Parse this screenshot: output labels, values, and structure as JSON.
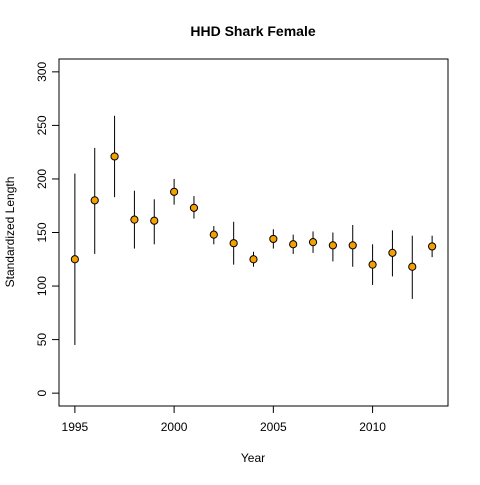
{
  "chart_data": {
    "type": "scatter",
    "title": "HHD Shark Female",
    "xlabel": "Year",
    "ylabel": "Standardized Length",
    "xlim": [
      1994.2,
      2013.8
    ],
    "ylim": [
      -12,
      312
    ],
    "xticks": [
      1995,
      2000,
      2005,
      2010
    ],
    "yticks": [
      0,
      50,
      100,
      150,
      200,
      250,
      300
    ],
    "grid": false,
    "point_color": "#F5A000",
    "point_edge_color": "#000000",
    "series": [
      {
        "x": [
          1995,
          1996,
          1997,
          1998,
          1999,
          2000,
          2001,
          2002,
          2003,
          2004,
          2005,
          2006,
          2007,
          2008,
          2009,
          2010,
          2011,
          2012,
          2013
        ],
        "y": [
          125,
          180,
          221,
          162,
          161,
          188,
          173,
          148,
          140,
          125,
          144,
          139,
          141,
          138,
          138,
          120,
          131,
          118,
          137
        ],
        "lower": [
          45,
          130,
          183,
          135,
          139,
          176,
          163,
          139,
          120,
          118,
          135,
          130,
          131,
          123,
          118,
          101,
          109,
          88,
          127
        ],
        "upper": [
          205,
          229,
          259,
          189,
          181,
          200,
          184,
          156,
          160,
          132,
          153,
          148,
          151,
          150,
          157,
          139,
          152,
          147,
          147
        ]
      }
    ]
  }
}
